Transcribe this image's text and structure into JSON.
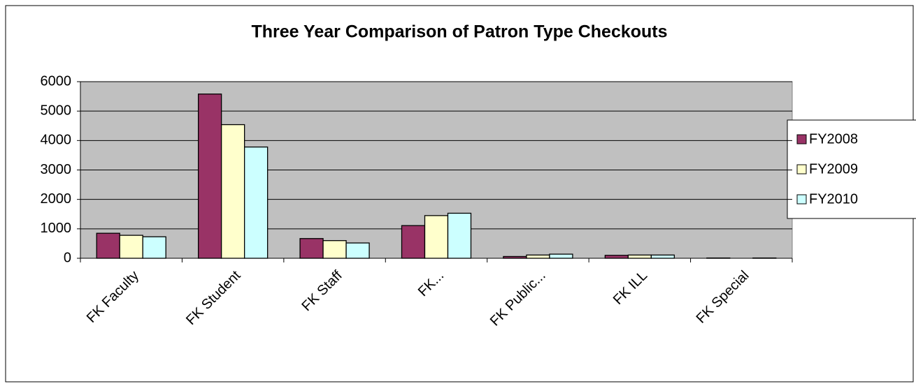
{
  "chart_data": {
    "type": "bar",
    "title": "Three Year Comparison of Patron Type Checkouts",
    "categories": [
      "FK Faculty",
      "FK Student",
      "FK Staff",
      "FK...",
      "FK Public...",
      "FK ILL",
      "FK Special"
    ],
    "series": [
      {
        "name": "FY2008",
        "color": "#993366",
        "values": [
          850,
          5580,
          670,
          1110,
          60,
          100,
          10
        ]
      },
      {
        "name": "FY2009",
        "color": "#ffffcc",
        "values": [
          780,
          4540,
          600,
          1450,
          110,
          110,
          0
        ]
      },
      {
        "name": "FY2010",
        "color": "#ccffff",
        "values": [
          730,
          3780,
          520,
          1530,
          140,
          110,
          10
        ]
      }
    ],
    "ylim": [
      0,
      6000
    ],
    "yticks": [
      0,
      1000,
      2000,
      3000,
      4000,
      5000,
      6000
    ],
    "grid": true,
    "legend": "right"
  }
}
